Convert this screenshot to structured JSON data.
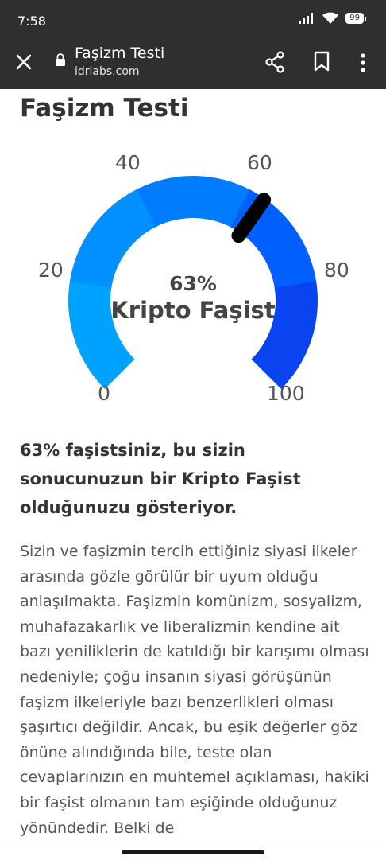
{
  "status_bar": {
    "time": "7:58",
    "battery": "99",
    "icons": [
      "signal-icon",
      "wifi-icon",
      "battery-icon"
    ]
  },
  "toolbar": {
    "title": "Faşizm Testi",
    "url": "idrlabs.com",
    "icons": [
      "close-icon",
      "lock-icon",
      "share-icon",
      "bookmark-icon",
      "more-vert-icon"
    ]
  },
  "page": {
    "heading": "Faşizm Testi",
    "gauge": {
      "ticks": [
        "0",
        "20",
        "40",
        "60",
        "80",
        "100"
      ],
      "percent_text": "63%",
      "result_label": "Kripto Faşist",
      "value": 63,
      "colors": [
        "#00a2ff",
        "#0090ff",
        "#007dff",
        "#0060ff",
        "#0a44f0"
      ],
      "needle_color": "#000000"
    },
    "summary": "63% faşistsiniz, bu sizin sonucunuzun bir Kripto Faşist olduğunuzu gösteriyor.",
    "body": "Sizin ve faşizmin tercih ettiğiniz siyasi ilkeler arasında gözle görülür bir uyum olduğu anlaşılmakta. Faşizmin komünizm, sosyalizm, muhafazakarlık ve liberalizmin kendine ait bazı yeniliklerin de katıldığı bir karışımı olması nedeniyle; çoğu insanın siyasi görüşünün faşizm ilkeleriyle bazı benzerlikleri olması şaşırtıcı değildir. Ancak, bu eşik değerler göz önüne alındığında bile, teste olan cevaplarınızın en muhtemel açıklaması, hakiki bir faşist olmanın tam eşiğinde olduğunuz yönündedir. Belki de"
  }
}
